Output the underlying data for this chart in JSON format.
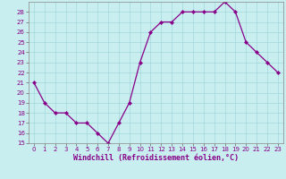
{
  "x": [
    0,
    1,
    2,
    3,
    4,
    5,
    6,
    7,
    8,
    9,
    10,
    11,
    12,
    13,
    14,
    15,
    16,
    17,
    18,
    19,
    20,
    21,
    22,
    23
  ],
  "y": [
    21,
    19,
    18,
    18,
    17,
    17,
    16,
    15,
    17,
    19,
    23,
    26,
    27,
    27,
    28,
    28,
    28,
    28,
    29,
    28,
    25,
    24,
    23,
    22
  ],
  "line_color": "#880088",
  "marker": "D",
  "marker_size": 2.2,
  "background_color": "#c8eef0",
  "grid_color": "#a0d8dc",
  "xlabel": "Windchill (Refroidissement éolien,°C)",
  "ylabel": "",
  "ylim": [
    15,
    29
  ],
  "xlim": [
    -0.5,
    23.5
  ],
  "yticks": [
    15,
    16,
    17,
    18,
    19,
    20,
    21,
    22,
    23,
    24,
    25,
    26,
    27,
    28
  ],
  "xticks": [
    0,
    1,
    2,
    3,
    4,
    5,
    6,
    7,
    8,
    9,
    10,
    11,
    12,
    13,
    14,
    15,
    16,
    17,
    18,
    19,
    20,
    21,
    22,
    23
  ],
  "tick_label_fontsize": 5.0,
  "xlabel_fontsize": 6.0,
  "line_width": 0.9
}
